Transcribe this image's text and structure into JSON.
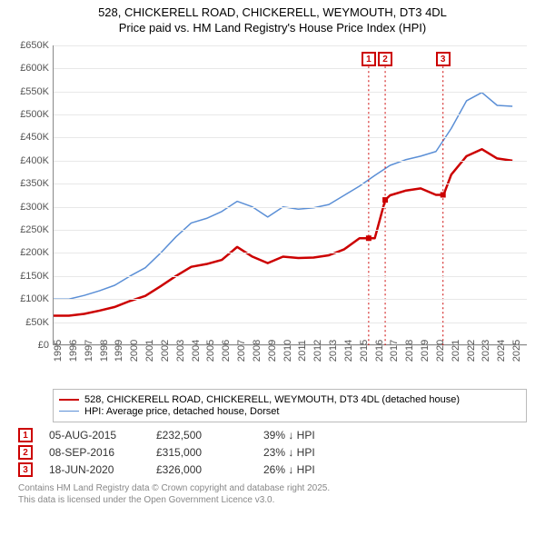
{
  "chart": {
    "title": "528, CHICKERELL ROAD, CHICKERELL, WEYMOUTH, DT3 4DL",
    "subtitle": "Price paid vs. HM Land Registry's House Price Index (HPI)",
    "background_color": "#ffffff",
    "grid_color": "#e8e8e8",
    "axis_color": "#888888",
    "xlim": [
      1995,
      2026
    ],
    "ylim": [
      0,
      650
    ],
    "ytick_step": 50,
    "ytick_labels": [
      "£0",
      "£50K",
      "£100K",
      "£150K",
      "£200K",
      "£250K",
      "£300K",
      "£350K",
      "£400K",
      "£450K",
      "£500K",
      "£550K",
      "£600K",
      "£650K"
    ],
    "xtick_step": 1,
    "xtick_labels": [
      "1995",
      "1996",
      "1997",
      "1998",
      "1999",
      "2000",
      "2001",
      "2002",
      "2003",
      "2004",
      "2005",
      "2006",
      "2007",
      "2008",
      "2009",
      "2010",
      "2011",
      "2012",
      "2013",
      "2014",
      "2015",
      "2016",
      "2017",
      "2018",
      "2019",
      "2020",
      "2021",
      "2022",
      "2023",
      "2024",
      "2025"
    ],
    "series": [
      {
        "name": "hpi",
        "label": "HPI: Average price, detached house, Dorset",
        "color": "#5b8fd6",
        "line_width": 1.5,
        "points": [
          [
            1995,
            100
          ],
          [
            1996,
            100
          ],
          [
            1997,
            108
          ],
          [
            1998,
            118
          ],
          [
            1999,
            130
          ],
          [
            2000,
            150
          ],
          [
            2001,
            168
          ],
          [
            2002,
            200
          ],
          [
            2003,
            235
          ],
          [
            2004,
            265
          ],
          [
            2005,
            275
          ],
          [
            2006,
            290
          ],
          [
            2007,
            312
          ],
          [
            2008,
            300
          ],
          [
            2009,
            278
          ],
          [
            2010,
            300
          ],
          [
            2011,
            295
          ],
          [
            2012,
            298
          ],
          [
            2013,
            305
          ],
          [
            2014,
            325
          ],
          [
            2015,
            345
          ],
          [
            2016,
            368
          ],
          [
            2017,
            390
          ],
          [
            2018,
            402
          ],
          [
            2019,
            410
          ],
          [
            2020,
            420
          ],
          [
            2021,
            470
          ],
          [
            2022,
            530
          ],
          [
            2023,
            548
          ],
          [
            2024,
            520
          ],
          [
            2025,
            518
          ]
        ]
      },
      {
        "name": "price_paid",
        "label": "528, CHICKERELL ROAD, CHICKERELL, WEYMOUTH, DT3 4DL (detached house)",
        "color": "#cc0000",
        "line_width": 2.5,
        "points": [
          [
            1995,
            64
          ],
          [
            1996,
            64
          ],
          [
            1997,
            68
          ],
          [
            1998,
            75
          ],
          [
            1999,
            83
          ],
          [
            2000,
            96
          ],
          [
            2001,
            107
          ],
          [
            2002,
            128
          ],
          [
            2003,
            150
          ],
          [
            2004,
            170
          ],
          [
            2005,
            176
          ],
          [
            2006,
            185
          ],
          [
            2007,
            213
          ],
          [
            2008,
            192
          ],
          [
            2009,
            178
          ],
          [
            2010,
            192
          ],
          [
            2011,
            189
          ],
          [
            2012,
            190
          ],
          [
            2013,
            195
          ],
          [
            2014,
            208
          ],
          [
            2015,
            232
          ],
          [
            2015.6,
            232
          ],
          [
            2016,
            232
          ],
          [
            2016.68,
            315
          ],
          [
            2017,
            325
          ],
          [
            2018,
            335
          ],
          [
            2019,
            340
          ],
          [
            2020,
            326
          ],
          [
            2020.5,
            326
          ],
          [
            2021,
            370
          ],
          [
            2022,
            410
          ],
          [
            2023,
            425
          ],
          [
            2024,
            405
          ],
          [
            2025,
            400
          ]
        ],
        "sale_markers": [
          {
            "x": 2015.6,
            "y": 232
          },
          {
            "x": 2016.68,
            "y": 315
          },
          {
            "x": 2020.46,
            "y": 326
          }
        ]
      }
    ],
    "callouts": [
      {
        "num": "1",
        "x": 2015.6,
        "y_top": 620
      },
      {
        "num": "2",
        "x": 2016.68,
        "y_top": 620
      },
      {
        "num": "3",
        "x": 2020.46,
        "y_top": 620
      }
    ]
  },
  "legend": {
    "items": [
      {
        "color": "#cc0000",
        "width": 2.5,
        "label": "528, CHICKERELL ROAD, CHICKERELL, WEYMOUTH, DT3 4DL (detached house)"
      },
      {
        "color": "#5b8fd6",
        "width": 1.5,
        "label": "HPI: Average price, detached house, Dorset"
      }
    ]
  },
  "sales": [
    {
      "num": "1",
      "date": "05-AUG-2015",
      "price": "£232,500",
      "diff": "39% ↓ HPI"
    },
    {
      "num": "2",
      "date": "08-SEP-2016",
      "price": "£315,000",
      "diff": "23% ↓ HPI"
    },
    {
      "num": "3",
      "date": "18-JUN-2020",
      "price": "£326,000",
      "diff": "26% ↓ HPI"
    }
  ],
  "footer": {
    "line1": "Contains HM Land Registry data © Crown copyright and database right 2025.",
    "line2": "This data is licensed under the Open Government Licence v3.0."
  }
}
